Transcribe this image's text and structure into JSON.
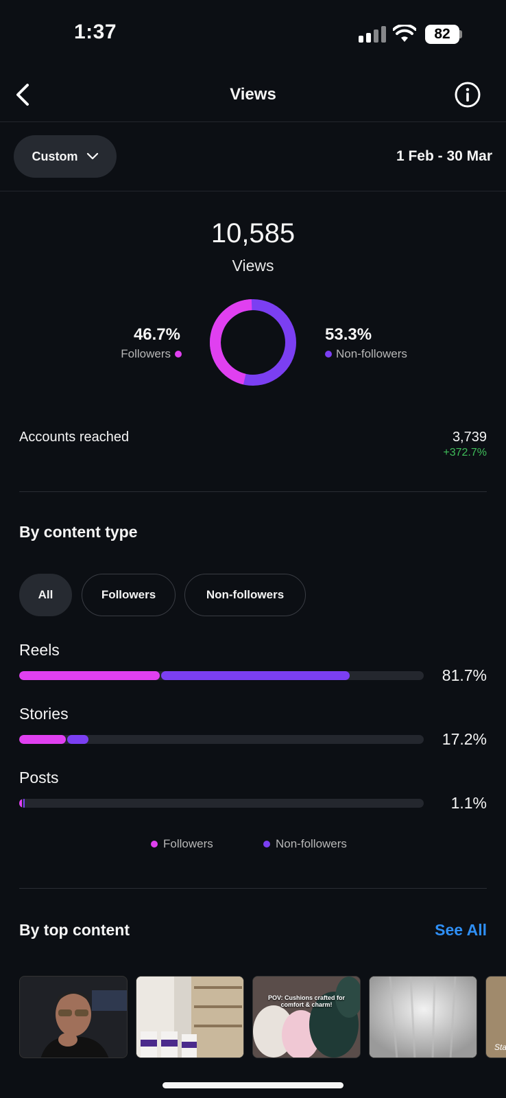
{
  "status_bar": {
    "time": "1:37",
    "battery": "82"
  },
  "header": {
    "title": "Views"
  },
  "filter": {
    "range_label": "Custom",
    "date_range": "1 Feb - 30 Mar"
  },
  "summary": {
    "total": "10,585",
    "total_label": "Views",
    "followers_pct": "46.7%",
    "followers_label": "Followers",
    "non_followers_pct": "53.3%",
    "non_followers_label": "Non-followers",
    "followers_fraction": 0.467
  },
  "reach": {
    "label": "Accounts reached",
    "value": "3,739",
    "delta": "+372.7%"
  },
  "content_type": {
    "title": "By content type",
    "tabs": [
      "All",
      "Followers",
      "Non-followers"
    ],
    "rows": [
      {
        "label": "Reels",
        "pct": "81.7%",
        "followers_fraction": 0.347,
        "non_followers_fraction": 0.47
      },
      {
        "label": "Stories",
        "pct": "17.2%",
        "followers_fraction": 0.115,
        "non_followers_fraction": 0.057
      },
      {
        "label": "Posts",
        "pct": "1.1%",
        "followers_fraction": 0.006,
        "non_followers_fraction": 0.005
      }
    ],
    "legend": {
      "followers": "Followers",
      "non_followers": "Non-followers"
    }
  },
  "top_content": {
    "title": "By top content",
    "see_all": "See All",
    "thumb_caption": "POV: Cushions crafted for comfort & charm!",
    "thumb_caption_partial": "Sta"
  },
  "colors": {
    "followers": "#e040f0",
    "non_followers": "#7b3ff2",
    "accent": "#2f8ff5",
    "positive": "#3fbf5a"
  }
}
